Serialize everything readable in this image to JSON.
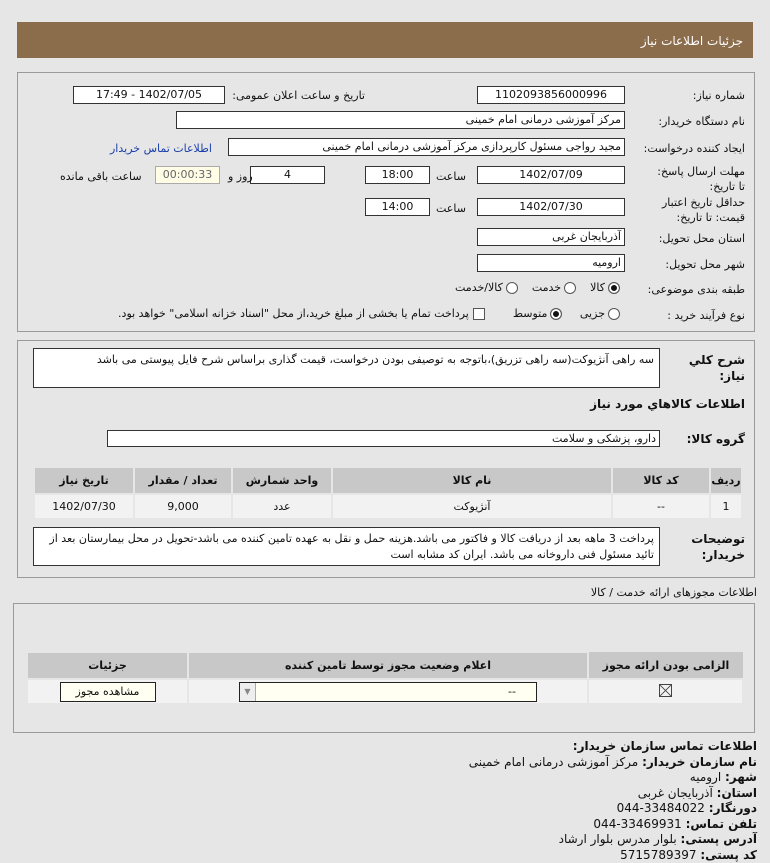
{
  "header": {
    "title": "جزئیات اطلاعات نیاز"
  },
  "form": {
    "need_number_label": "شماره نیاز:",
    "need_number": "1102093856000996",
    "announce_label": "تاریخ و ساعت اعلان عمومی:",
    "announce_value": "1402/07/05 - 17:49",
    "buyer_label": "نام دستگاه خریدار:",
    "buyer": "مرکز آموزشی درمانی امام خمینی",
    "creator_label": "ایجاد کننده درخواست:",
    "creator": "مجید  رواجی مسئول کارپردازی مرکز آموزشی درمانی امام خمینی",
    "contact_link": "اطلاعات تماس خریدار",
    "deadline_label": "مهلت ارسال پاسخ: تا تاریخ:",
    "deadline_date": "1402/07/09",
    "time_label": "ساعت",
    "deadline_time": "18:00",
    "days": "4",
    "days_label": "روز و",
    "countdown": "00:00:33",
    "remaining_label": "ساعت باقی مانده",
    "validity_label": "حداقل تاریخ اعتبار قیمت: تا تاریخ:",
    "validity_date": "1402/07/30",
    "validity_time": "14:00",
    "province_label": "استان محل تحویل:",
    "province": "آذربایجان غربی",
    "city_label": "شهر محل تحویل:",
    "city": "ارومیه",
    "category_label": "طبقه بندی موضوعی:",
    "category_options": [
      "کالا",
      "خدمت",
      "کالا/خدمت"
    ],
    "category_selected": "کالا",
    "process_label": "نوع فرآیند خرید :",
    "process_options": [
      "جزیی",
      "متوسط"
    ],
    "process_selected": "متوسط",
    "treasury_text": "پرداخت تمام یا بخشی از مبلغ خرید،از محل \"اسناد خزانه اسلامی\" خواهد بود."
  },
  "details": {
    "desc_label": "شرح کلي نیاز:",
    "desc": "سه راهی آنژیوکت(سه راهی تزریق)،باتوجه به توصیفی بودن درخواست، قیمت گذاری براساس شرح فایل پیوستی می باشد",
    "goods_title": "اطلاعات کالاهاي مورد نیاز",
    "group_label": "گروه کالا:",
    "group": "دارو، پزشکی و سلامت",
    "columns": [
      "ردیف",
      "کد کالا",
      "نام کالا",
      "واحد شمارش",
      "تعداد / مقدار",
      "تاریخ نیاز"
    ],
    "rows": [
      [
        "1",
        "--",
        "آنژیوکت",
        "عدد",
        "9,000",
        "1402/07/30"
      ]
    ],
    "notes_label": "توضیحات خریدار:",
    "notes": "پرداخت 3 ماهه بعد از دریافت کالا و فاکتور می باشد.هزینه حمل و نقل به عهده تامین کننده می باشد-تحویل در محل بیمارستان بعد از تائید مسئول فنی داروخانه می باشد. ایران کد مشابه است"
  },
  "permits": {
    "title": "اطلاعات مجوزهای ارائه خدمت / کالا",
    "columns": [
      "الزامی بودن ارائه مجوز",
      "اعلام وضعیت مجوز توسط تامین کننده",
      "جزئیات"
    ],
    "select_value": "--",
    "view_button": "مشاهده مجوز"
  },
  "contact": {
    "title": "اطلاعات تماس سازمان خریدار:",
    "org_label": "نام سازمان خریدار:",
    "org": "مرکز آموزشی درمانی امام خمینی",
    "city_label": "شهر:",
    "city": "ارومیه",
    "province_label": "استان:",
    "province": "آذربایجان غربی",
    "fax_label": "دورنگار:",
    "fax": "044-33484022",
    "phone_label": "تلفن تماس:",
    "phone": "044-33469931",
    "address_label": "آدرس پستی:",
    "address": "بلوار مدرس بلوار ارشاد",
    "postal_label": "کد پستی:",
    "postal": "5715789397"
  }
}
